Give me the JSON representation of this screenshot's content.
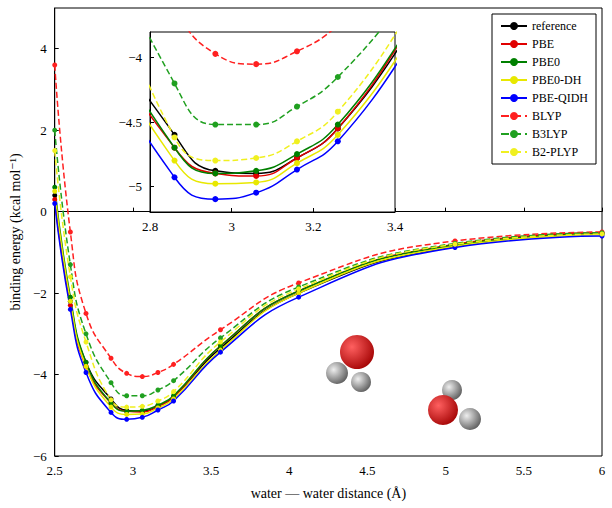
{
  "chart_data": {
    "type": "line",
    "x_label": "water — water distance (Å)",
    "y_label": "binding energy (kcal mol⁻¹)",
    "x": [
      2.5,
      2.6,
      2.7,
      2.86,
      2.96,
      3.06,
      3.16,
      3.26,
      3.56,
      4.06,
      5.06,
      6.0
    ],
    "xlim": [
      2.5,
      6
    ],
    "xticks": [
      2.5,
      3,
      3.5,
      4,
      4.5,
      5,
      5.5,
      6
    ],
    "ylim": [
      -6,
      5
    ],
    "yticks": [
      {
        "value": -6,
        "label": "−6"
      },
      {
        "value": -4,
        "label": "−4"
      },
      {
        "value": -2,
        "label": "−2"
      },
      0,
      2,
      4
    ],
    "grid": false,
    "legend": "top-right",
    "series": [
      {
        "name": "reference",
        "color": "#000000",
        "line_style": "solid",
        "marker": "circle",
        "values": [
          0.4,
          -2.2,
          -3.7,
          -4.6,
          -4.88,
          -4.9,
          -4.78,
          -4.55,
          -3.35,
          -2.0,
          -0.85,
          -0.55
        ]
      },
      {
        "name": "PBE",
        "color": "#e00000",
        "line_style": "solid",
        "marker": "circle",
        "values": [
          0.3,
          -2.3,
          -3.8,
          -4.7,
          -4.9,
          -4.92,
          -4.78,
          -4.55,
          -3.3,
          -1.95,
          -0.8,
          -0.52
        ]
      },
      {
        "name": "PBE0",
        "color": "#008000",
        "line_style": "solid",
        "marker": "circle",
        "values": [
          0.6,
          -2.1,
          -3.7,
          -4.7,
          -4.9,
          -4.88,
          -4.75,
          -4.52,
          -3.3,
          -1.95,
          -0.82,
          -0.55
        ]
      },
      {
        "name": "PBE0-DH",
        "color": "#e8e800",
        "line_style": "solid",
        "marker": "circle",
        "values": [
          0.5,
          -2.2,
          -3.8,
          -4.8,
          -4.98,
          -4.97,
          -4.82,
          -4.6,
          -3.4,
          -2.0,
          -0.85,
          -0.57
        ]
      },
      {
        "name": "PBE-QIDH",
        "color": "#0000ff",
        "line_style": "solid",
        "marker": "circle",
        "values": [
          0.2,
          -2.4,
          -3.95,
          -4.93,
          -5.1,
          -5.05,
          -4.87,
          -4.65,
          -3.45,
          -2.1,
          -0.88,
          -0.6
        ]
      },
      {
        "name": "BLYP",
        "color": "#ff2020",
        "line_style": "dashed",
        "marker": "circle",
        "values": [
          3.6,
          -0.5,
          -2.5,
          -3.6,
          -3.97,
          -4.05,
          -3.95,
          -3.75,
          -2.9,
          -1.75,
          -0.72,
          -0.5
        ]
      },
      {
        "name": "B3LYP",
        "color": "#20a020",
        "line_style": "dashed",
        "marker": "circle",
        "values": [
          2.0,
          -1.3,
          -3.0,
          -4.2,
          -4.52,
          -4.52,
          -4.38,
          -4.15,
          -3.1,
          -1.85,
          -0.78,
          -0.52
        ]
      },
      {
        "name": "B2-PLYP",
        "color": "#f0f020",
        "line_style": "dashed",
        "marker": "circle",
        "values": [
          1.5,
          -1.6,
          -3.2,
          -4.62,
          -4.8,
          -4.78,
          -4.65,
          -4.42,
          -3.2,
          -1.9,
          -0.8,
          -0.55
        ]
      }
    ],
    "inset": {
      "xlim": [
        2.8,
        3.4
      ],
      "xticks": [
        2.8,
        3,
        3.2,
        3.4
      ],
      "ylim": [
        -5.2,
        -3.8
      ],
      "yticks": [
        {
          "value": -5,
          "label": "−5"
        },
        {
          "value": -4.5,
          "label": "−4.5"
        },
        {
          "value": -4,
          "label": "−4"
        }
      ]
    }
  }
}
